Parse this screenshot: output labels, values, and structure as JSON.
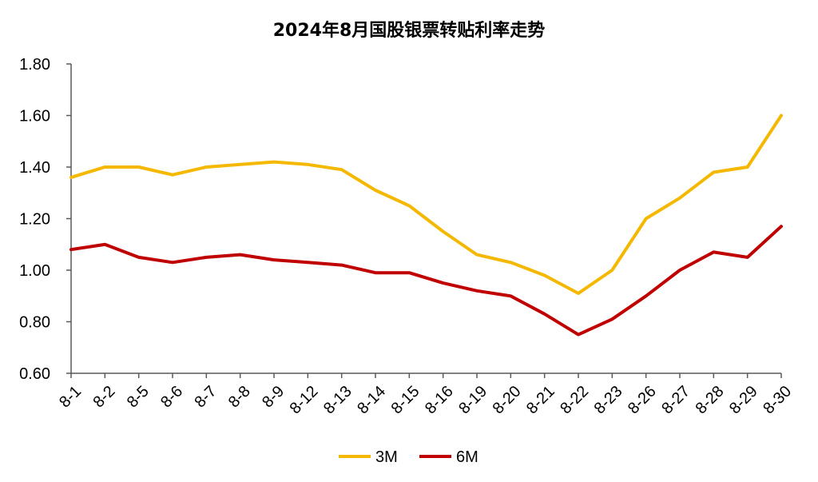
{
  "chart_data": {
    "type": "line",
    "title": "2024年8月国股银票转贴利率走势",
    "xlabel": "",
    "ylabel": "",
    "categories": [
      "8-1",
      "8-2",
      "8-5",
      "8-6",
      "8-7",
      "8-8",
      "8-9",
      "8-12",
      "8-13",
      "8-14",
      "8-15",
      "8-16",
      "8-19",
      "8-20",
      "8-21",
      "8-22",
      "8-23",
      "8-26",
      "8-27",
      "8-28",
      "8-29",
      "8-30"
    ],
    "series": [
      {
        "name": "3M",
        "color": "#F5B800",
        "values": [
          1.36,
          1.4,
          1.4,
          1.37,
          1.4,
          1.41,
          1.42,
          1.41,
          1.39,
          1.31,
          1.25,
          1.15,
          1.06,
          1.03,
          0.98,
          0.91,
          1.0,
          1.2,
          1.28,
          1.38,
          1.4,
          1.6
        ]
      },
      {
        "name": "6M",
        "color": "#C00000",
        "values": [
          1.08,
          1.1,
          1.05,
          1.03,
          1.05,
          1.06,
          1.04,
          1.03,
          1.02,
          0.99,
          0.99,
          0.95,
          0.92,
          0.9,
          0.83,
          0.75,
          0.81,
          0.9,
          1.0,
          1.07,
          1.05,
          1.17
        ]
      }
    ],
    "ylim": [
      0.6,
      1.8
    ],
    "yticks": [
      "0.60",
      "0.80",
      "1.00",
      "1.20",
      "1.40",
      "1.60",
      "1.80"
    ],
    "grid": false,
    "legend": "bottom-center"
  }
}
